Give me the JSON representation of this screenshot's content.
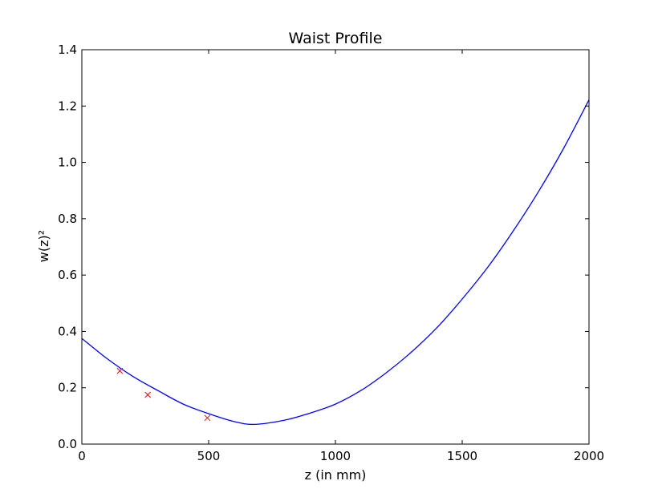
{
  "chart_data": {
    "type": "line",
    "title": "Waist Profile",
    "xlabel": "z (in mm)",
    "ylabel": "w(z)²",
    "xlim": [
      0,
      2000
    ],
    "ylim": [
      0.0,
      1.4
    ],
    "xticks": [
      0,
      500,
      1000,
      1500,
      2000
    ],
    "xtick_labels": [
      "0",
      "500",
      "1000",
      "1500",
      "2000"
    ],
    "yticks": [
      0.0,
      0.2,
      0.4,
      0.6,
      0.8,
      1.0,
      1.2,
      1.4
    ],
    "ytick_labels": [
      "0.0",
      "0.2",
      "0.4",
      "0.6",
      "0.8",
      "1.0",
      "1.2",
      "1.4"
    ],
    "grid": false,
    "series": [
      {
        "kind": "line",
        "color": "#0000ff",
        "x": [
          0,
          100,
          200,
          300,
          400,
          500,
          600,
          680,
          800,
          900,
          1000,
          1100,
          1200,
          1300,
          1400,
          1500,
          1600,
          1700,
          1800,
          1900,
          2000
        ],
        "y": [
          0.375,
          0.303,
          0.241,
          0.19,
          0.142,
          0.108,
          0.08,
          0.07,
          0.085,
          0.11,
          0.142,
          0.19,
          0.253,
          0.327,
          0.413,
          0.515,
          0.627,
          0.755,
          0.895,
          1.05,
          1.222
        ]
      },
      {
        "kind": "scatter",
        "marker": "x",
        "color": "#ff0000",
        "x": [
          150,
          260,
          495
        ],
        "y": [
          0.26,
          0.175,
          0.093
        ]
      }
    ]
  }
}
